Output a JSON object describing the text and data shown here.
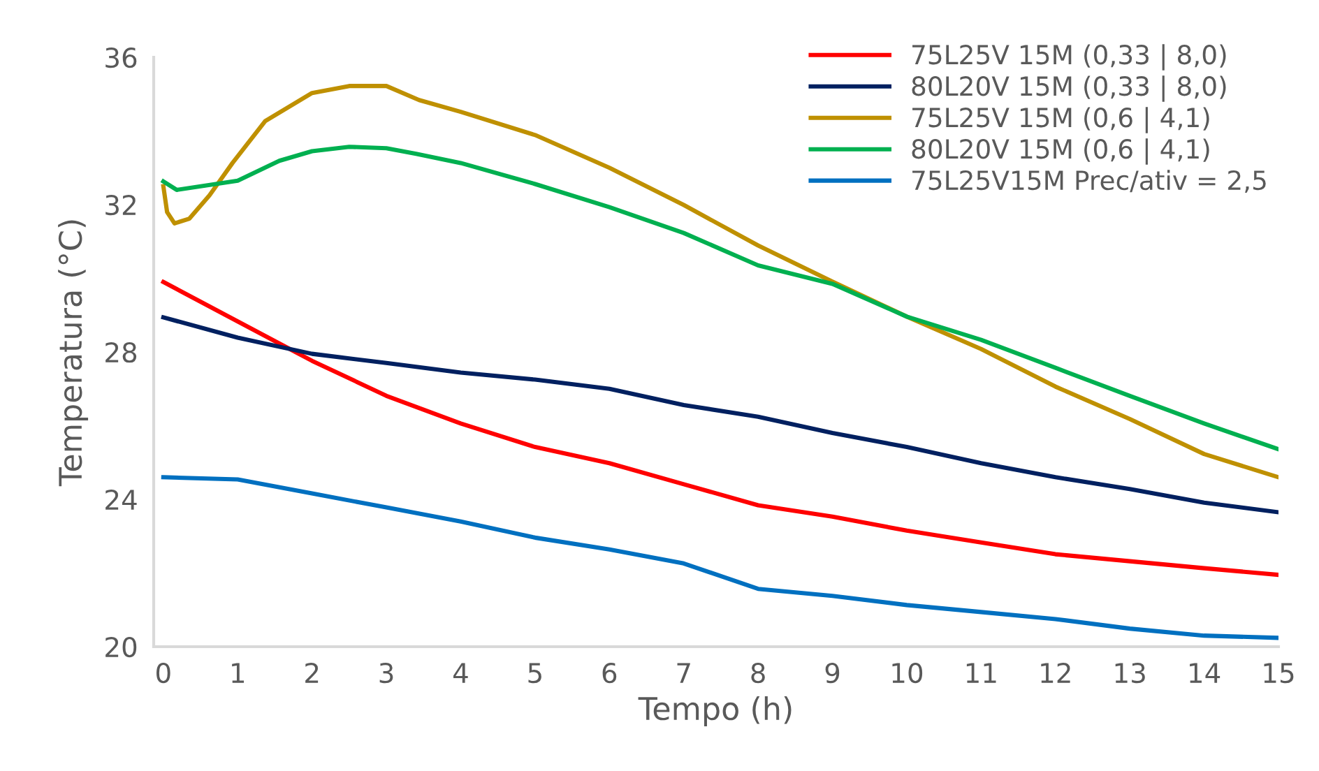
{
  "chart_data": {
    "type": "line",
    "xlabel": "Tempo (h)",
    "ylabel": "Temperatura (°C)",
    "xlim": [
      -0.13,
      15
    ],
    "xticks": [
      0,
      1,
      2,
      3,
      4,
      5,
      6,
      7,
      8,
      9,
      10,
      11,
      12,
      13,
      14,
      15
    ],
    "ylim": [
      20,
      36
    ],
    "yticks": [
      20,
      24,
      28,
      32,
      36
    ],
    "grid": false,
    "legend": "top right",
    "marker": "none",
    "line_style": "solid",
    "series": [
      {
        "name": "75L25V 15M (0,33 | 8,0)",
        "color": "#ff0000",
        "x": [
          0,
          1,
          2,
          3,
          4,
          5,
          6,
          7,
          8,
          9,
          10,
          11,
          12,
          13,
          14,
          15
        ],
        "values": [
          29.9,
          28.83,
          27.76,
          26.81,
          26.06,
          25.42,
          24.98,
          24.41,
          23.84,
          23.53,
          23.15,
          22.83,
          22.51,
          22.32,
          22.13,
          21.95
        ]
      },
      {
        "name": "80L20V 15M (0,33 | 8,0)",
        "color": "#002060",
        "x": [
          0,
          1,
          2,
          3,
          4,
          5,
          6,
          7,
          8,
          9,
          10,
          11,
          12,
          13,
          14,
          15
        ],
        "values": [
          28.94,
          28.39,
          27.95,
          27.7,
          27.44,
          27.25,
          27.0,
          26.56,
          26.24,
          25.8,
          25.42,
          24.98,
          24.6,
          24.28,
          23.91,
          23.65
        ]
      },
      {
        "name": "75L25V 15M (0,6 | 4,1)",
        "color": "#bf9000",
        "x": [
          0,
          0.05,
          0.15,
          0.35,
          0.62,
          0.93,
          1.37,
          2,
          2.5,
          3,
          3.44,
          4,
          5,
          6,
          7,
          8,
          9,
          10,
          11,
          12,
          13,
          14,
          15
        ],
        "values": [
          32.5,
          31.8,
          31.49,
          31.62,
          32.25,
          33.13,
          34.27,
          35.03,
          35.22,
          35.22,
          34.84,
          34.52,
          33.89,
          33.0,
          31.99,
          30.89,
          29.91,
          28.96,
          28.08,
          27.06,
          26.18,
          25.23,
          24.6
        ]
      },
      {
        "name": "80L20V 15M (0,6 | 4,1)",
        "color": "#00b050",
        "x": [
          0,
          0.18,
          1,
          1.56,
          2,
          2.5,
          3,
          3.4,
          4,
          5,
          6,
          7,
          8,
          9,
          10,
          11,
          12,
          13,
          14,
          15
        ],
        "values": [
          32.63,
          32.4,
          32.65,
          33.19,
          33.45,
          33.57,
          33.53,
          33.38,
          33.13,
          32.56,
          31.93,
          31.23,
          30.35,
          29.85,
          28.96,
          28.33,
          27.57,
          26.81,
          26.06,
          25.36
        ]
      },
      {
        "name": "75L25V15M Prec/ativ = 2,5",
        "color": "#0070c0",
        "x": [
          0,
          1,
          2,
          3,
          4,
          5,
          6,
          7,
          8,
          9,
          10,
          11,
          12,
          13,
          14,
          15
        ],
        "values": [
          24.6,
          24.54,
          24.16,
          23.78,
          23.4,
          22.96,
          22.64,
          22.26,
          21.57,
          21.38,
          21.13,
          20.94,
          20.75,
          20.49,
          20.3,
          20.24
        ]
      }
    ]
  }
}
